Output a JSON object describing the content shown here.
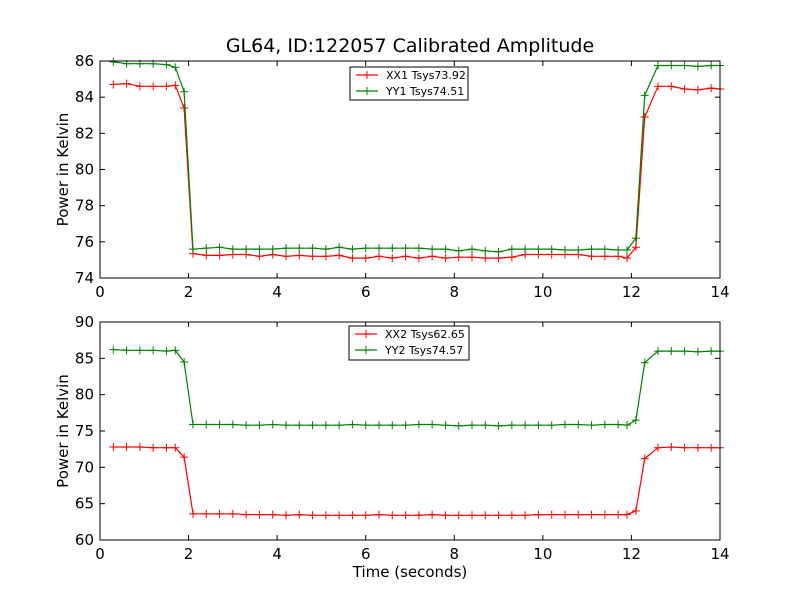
{
  "figure_title": "GL64, ID:122057 Calibrated Amplitude",
  "chart_data": [
    {
      "type": "line",
      "title": "GL64, ID:122057 Calibrated Amplitude",
      "xlabel": "",
      "ylabel": "Power in Kelvin",
      "xlim": [
        0,
        14
      ],
      "ylim": [
        74,
        86
      ],
      "xticks": [
        "0",
        "2",
        "4",
        "6",
        "8",
        "10",
        "12",
        "14"
      ],
      "yticks": [
        "74",
        "76",
        "78",
        "80",
        "82",
        "84",
        "86"
      ],
      "grid": false,
      "legend_position": "top-center",
      "x": [
        0.3,
        0.6,
        0.9,
        1.2,
        1.5,
        1.7,
        1.9,
        2.1,
        2.4,
        2.7,
        3.0,
        3.3,
        3.6,
        3.9,
        4.2,
        4.5,
        4.8,
        5.1,
        5.4,
        5.7,
        6.0,
        6.3,
        6.6,
        6.9,
        7.2,
        7.5,
        7.8,
        8.1,
        8.4,
        8.7,
        9.0,
        9.3,
        9.6,
        9.9,
        10.2,
        10.5,
        10.8,
        11.1,
        11.4,
        11.7,
        11.9,
        12.1,
        12.3,
        12.6,
        12.9,
        13.2,
        13.5,
        13.8,
        14.0
      ],
      "series": [
        {
          "name": "XX1 Tsys73.92",
          "color": "#ff0000",
          "values": [
            84.7,
            84.75,
            84.6,
            84.6,
            84.6,
            84.65,
            83.4,
            75.35,
            75.25,
            75.25,
            75.3,
            75.3,
            75.2,
            75.3,
            75.2,
            75.25,
            75.2,
            75.2,
            75.25,
            75.1,
            75.1,
            75.2,
            75.1,
            75.2,
            75.1,
            75.2,
            75.1,
            75.15,
            75.15,
            75.1,
            75.1,
            75.15,
            75.3,
            75.3,
            75.3,
            75.3,
            75.3,
            75.2,
            75.2,
            75.2,
            75.1,
            75.7,
            82.9,
            84.6,
            84.6,
            84.45,
            84.4,
            84.5,
            84.45
          ]
        },
        {
          "name": "YY1 Tsys74.51",
          "color": "#008000",
          "values": [
            85.95,
            85.85,
            85.85,
            85.85,
            85.8,
            85.65,
            84.3,
            75.6,
            75.65,
            75.7,
            75.6,
            75.6,
            75.6,
            75.6,
            75.65,
            75.65,
            75.65,
            75.6,
            75.7,
            75.6,
            75.65,
            75.65,
            75.65,
            75.65,
            75.65,
            75.6,
            75.6,
            75.5,
            75.6,
            75.5,
            75.45,
            75.6,
            75.6,
            75.6,
            75.6,
            75.55,
            75.55,
            75.6,
            75.6,
            75.55,
            75.55,
            76.2,
            84.1,
            85.75,
            85.75,
            85.75,
            85.7,
            85.75,
            85.75
          ]
        }
      ]
    },
    {
      "type": "line",
      "title": "",
      "xlabel": "Time (seconds)",
      "ylabel": "Power in Kelvin",
      "xlim": [
        0,
        14
      ],
      "ylim": [
        60,
        90
      ],
      "xticks": [
        "0",
        "2",
        "4",
        "6",
        "8",
        "10",
        "12",
        "14"
      ],
      "yticks": [
        "60",
        "65",
        "70",
        "75",
        "80",
        "85",
        "90"
      ],
      "grid": false,
      "legend_position": "top-center",
      "x": [
        0.3,
        0.6,
        0.9,
        1.2,
        1.5,
        1.7,
        1.9,
        2.1,
        2.4,
        2.7,
        3.0,
        3.3,
        3.6,
        3.9,
        4.2,
        4.5,
        4.8,
        5.1,
        5.4,
        5.7,
        6.0,
        6.3,
        6.6,
        6.9,
        7.2,
        7.5,
        7.8,
        8.1,
        8.4,
        8.7,
        9.0,
        9.3,
        9.6,
        9.9,
        10.2,
        10.5,
        10.8,
        11.1,
        11.4,
        11.7,
        11.9,
        12.1,
        12.3,
        12.6,
        12.9,
        13.2,
        13.5,
        13.8,
        14.0
      ],
      "series": [
        {
          "name": "XX2 Tsys62.65",
          "color": "#ff0000",
          "values": [
            72.8,
            72.8,
            72.8,
            72.7,
            72.7,
            72.7,
            71.4,
            63.6,
            63.6,
            63.6,
            63.6,
            63.5,
            63.5,
            63.5,
            63.4,
            63.5,
            63.4,
            63.4,
            63.4,
            63.4,
            63.4,
            63.5,
            63.4,
            63.4,
            63.4,
            63.5,
            63.4,
            63.4,
            63.4,
            63.4,
            63.4,
            63.4,
            63.4,
            63.5,
            63.5,
            63.5,
            63.5,
            63.5,
            63.5,
            63.5,
            63.5,
            64.0,
            71.2,
            72.7,
            72.8,
            72.7,
            72.7,
            72.7,
            72.7
          ]
        },
        {
          "name": "YY2 Tsys74.57",
          "color": "#008000",
          "values": [
            86.2,
            86.1,
            86.1,
            86.1,
            86.0,
            86.1,
            84.5,
            75.9,
            75.9,
            75.9,
            75.9,
            75.8,
            75.8,
            75.9,
            75.8,
            75.8,
            75.8,
            75.8,
            75.8,
            75.9,
            75.8,
            75.8,
            75.8,
            75.8,
            75.9,
            75.9,
            75.8,
            75.7,
            75.8,
            75.8,
            75.7,
            75.8,
            75.8,
            75.8,
            75.8,
            75.9,
            75.9,
            75.8,
            75.9,
            75.9,
            75.8,
            76.5,
            84.4,
            86.0,
            86.0,
            86.0,
            85.9,
            86.0,
            86.0
          ]
        }
      ]
    }
  ]
}
